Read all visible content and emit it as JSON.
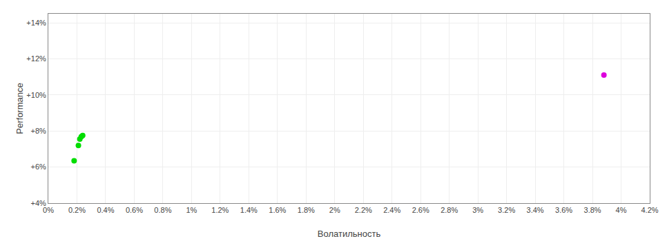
{
  "chart_data": {
    "type": "scatter",
    "x_label": "Волатильность",
    "y_label": "Performance",
    "series": [
      {
        "color": "#00dd00",
        "x": [
          0.0022,
          0.0024,
          0.0023,
          0.0021,
          0.0018
        ],
        "values": [
          0.0755,
          0.0775,
          0.0768,
          0.072,
          0.0635
        ]
      },
      {
        "color": "#dd00dd",
        "x": [
          0.0388
        ],
        "values": [
          0.111
        ]
      }
    ],
    "xlim": [
      0.0,
      0.042
    ],
    "ylim": [
      0.04,
      0.145
    ],
    "xticks": [
      {
        "value": 0.0,
        "label": "0%"
      },
      {
        "value": 0.002,
        "label": "0.2%"
      },
      {
        "value": 0.004,
        "label": "0.4%"
      },
      {
        "value": 0.006,
        "label": "0.6%"
      },
      {
        "value": 0.008,
        "label": "0.8%"
      },
      {
        "value": 0.01,
        "label": "1%"
      },
      {
        "value": 0.012,
        "label": "1.2%"
      },
      {
        "value": 0.014,
        "label": "1.4%"
      },
      {
        "value": 0.016,
        "label": "1.6%"
      },
      {
        "value": 0.018,
        "label": "1.8%"
      },
      {
        "value": 0.02,
        "label": "2%"
      },
      {
        "value": 0.022,
        "label": "2.2%"
      },
      {
        "value": 0.024,
        "label": "2.4%"
      },
      {
        "value": 0.026,
        "label": "2.6%"
      },
      {
        "value": 0.028,
        "label": "2.8%"
      },
      {
        "value": 0.03,
        "label": "3%"
      },
      {
        "value": 0.032,
        "label": "3.2%"
      },
      {
        "value": 0.034,
        "label": "3.4%"
      },
      {
        "value": 0.036,
        "label": "3.6%"
      },
      {
        "value": 0.038,
        "label": "3.8%"
      },
      {
        "value": 0.04,
        "label": "4%"
      },
      {
        "value": 0.042,
        "label": "4.2%"
      }
    ],
    "yticks": [
      {
        "value": 0.04,
        "label": "+4%"
      },
      {
        "value": 0.06,
        "label": "+6%"
      },
      {
        "value": 0.08,
        "label": "+8%"
      },
      {
        "value": 0.1,
        "label": "+10%"
      },
      {
        "value": 0.12,
        "label": "+12%"
      },
      {
        "value": 0.14,
        "label": "+14%"
      }
    ],
    "grid": true
  }
}
